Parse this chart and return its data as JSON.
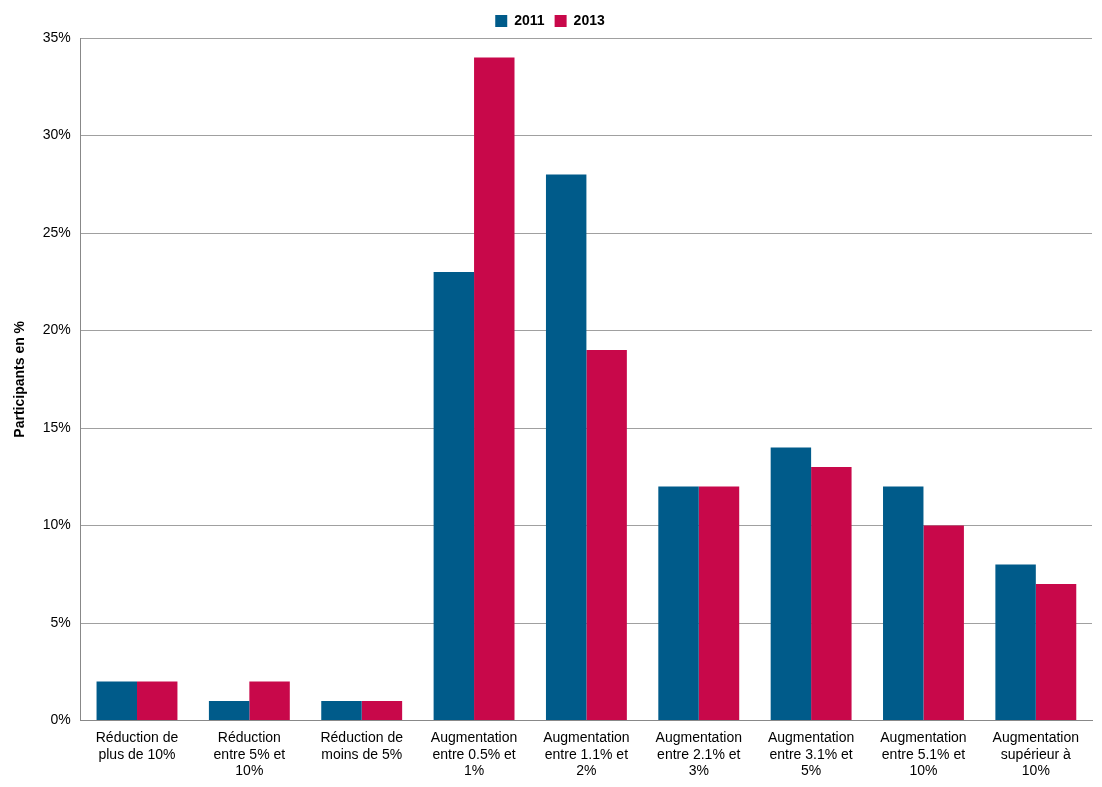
{
  "chart_data": {
    "type": "bar",
    "ylabel": "Participants en %",
    "categories": [
      "Réduction de plus de 10%",
      "Réduction entre 5% et 10%",
      "Réduction de moins de 5%",
      "Augmentation entre 0.5% et 1%",
      "Augmentation entre 1.1% et 2%",
      "Augmentation entre 2.1% et 3%",
      "Augmentation entre 3.1% et 5%",
      "Augmentation entre 5.1% et 10%",
      "Augmentation supérieur à 10%"
    ],
    "series": [
      {
        "name": "2011",
        "color": "#005b8a",
        "values": [
          2,
          1,
          1,
          23,
          28,
          12,
          14,
          12,
          8
        ]
      },
      {
        "name": "2013",
        "color": "#c8084a",
        "values": [
          2,
          2,
          1,
          34,
          19,
          12,
          13,
          10,
          7
        ]
      }
    ],
    "ylim": [
      0,
      35
    ],
    "yticks": [
      {
        "value": 0,
        "label": "0%"
      },
      {
        "value": 5,
        "label": "5%"
      },
      {
        "value": 10,
        "label": "10%"
      },
      {
        "value": 15,
        "label": "15%"
      },
      {
        "value": 20,
        "label": "20%"
      },
      {
        "value": 25,
        "label": "25%"
      },
      {
        "value": 30,
        "label": "30%"
      },
      {
        "value": 35,
        "label": "35%"
      }
    ],
    "grid": "y",
    "legend": "top"
  }
}
